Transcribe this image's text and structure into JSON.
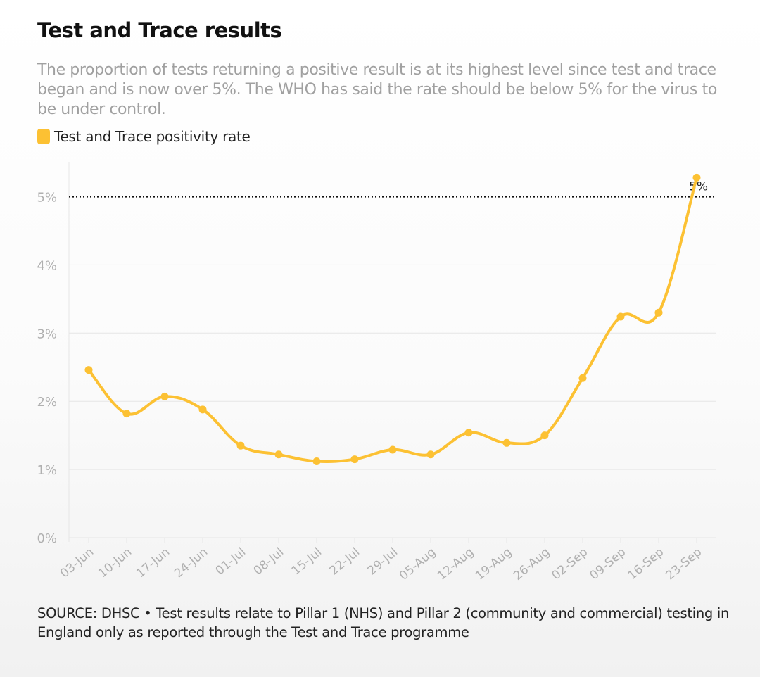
{
  "title": "Test and Trace results",
  "subtitle": "The proportion of tests returning a positive result is at its highest level since test and trace began and is now over 5%. The WHO has said the rate should be below 5% for the virus to be under control.",
  "source": "SOURCE: DHSC • Test results relate to Pillar 1 (NHS) and Pillar 2 (community and commercial) testing in England only as reported through the Test and Trace programme",
  "colors": {
    "series": "#fcc133",
    "grid": "#e6e6e6",
    "tick_text": "#b0b0b0",
    "reference_line": "#111111"
  },
  "chart_data": {
    "type": "line",
    "title": "Test and Trace results",
    "xlabel": "",
    "ylabel": "",
    "categories": [
      "03-Jun",
      "10-Jun",
      "17-Jun",
      "24-Jun",
      "01-Jul",
      "08-Jul",
      "15-Jul",
      "22-Jul",
      "29-Jul",
      "05-Aug",
      "12-Aug",
      "19-Aug",
      "26-Aug",
      "02-Sep",
      "09-Sep",
      "16-Sep",
      "23-Sep"
    ],
    "series": [
      {
        "name": "Test and Trace positivity rate",
        "values": [
          2.46,
          1.82,
          2.07,
          1.88,
          1.35,
          1.22,
          1.12,
          1.15,
          1.29,
          1.22,
          1.54,
          1.39,
          1.5,
          2.34,
          3.24,
          3.3,
          5.28
        ]
      }
    ],
    "ylim": [
      0,
      5.5
    ],
    "yticks": [
      0,
      1,
      2,
      3,
      4,
      5
    ],
    "ytick_labels": [
      "0%",
      "1%",
      "2%",
      "3%",
      "4%",
      "5%"
    ],
    "grid": true,
    "legend": "top-left",
    "annotations": [
      {
        "type": "hline",
        "y": 5,
        "label": "5%",
        "style": "dotted"
      }
    ]
  }
}
